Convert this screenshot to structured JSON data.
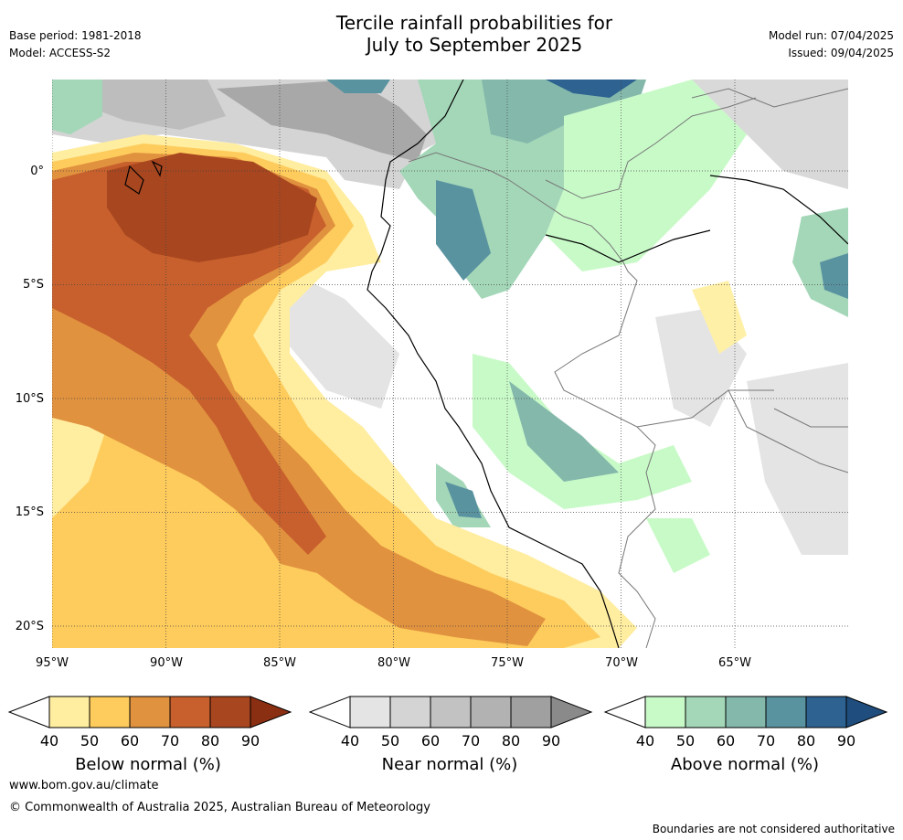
{
  "header": {
    "title_line1": "Tercile rainfall probabilities for",
    "title_line2": "July to September 2025",
    "base_period": "Base period: 1981-2018",
    "model": "Model: ACCESS-S2",
    "model_run": "Model run: 07/04/2025",
    "issued": "Issued: 09/04/2025"
  },
  "map": {
    "lat_labels": [
      "0°",
      "5°S",
      "10°S",
      "15°S",
      "20°S"
    ],
    "lon_labels": [
      "95°W",
      "90°W",
      "85°W",
      "80°W",
      "75°W",
      "70°W",
      "65°W"
    ]
  },
  "colorbars": [
    {
      "label": "Below normal (%)",
      "ticks": [
        "40",
        "50",
        "60",
        "70",
        "80",
        "90"
      ],
      "colors": [
        "#ffeda0",
        "#fecc5c",
        "#e1923f",
        "#c8602d",
        "#a8461f",
        "#8b2f12"
      ]
    },
    {
      "label": "Near normal (%)",
      "ticks": [
        "40",
        "50",
        "60",
        "70",
        "80",
        "90"
      ],
      "colors": [
        "#e4e4e4",
        "#d4d4d4",
        "#c2c2c2",
        "#b2b2b2",
        "#a0a0a0",
        "#8a8a8a"
      ]
    },
    {
      "label": "Above normal (%)",
      "ticks": [
        "40",
        "50",
        "60",
        "70",
        "80",
        "90"
      ],
      "colors": [
        "#c8fac8",
        "#a4d7b8",
        "#84b8ab",
        "#5a93a0",
        "#2d6291",
        "#1f4e7e"
      ]
    }
  ],
  "footer": {
    "url": "www.bom.gov.au/climate",
    "copyright": "© Commonwealth of Australia 2025, Australian Bureau of Meteorology",
    "disclaimer": "Boundaries are not considered authoritative"
  }
}
